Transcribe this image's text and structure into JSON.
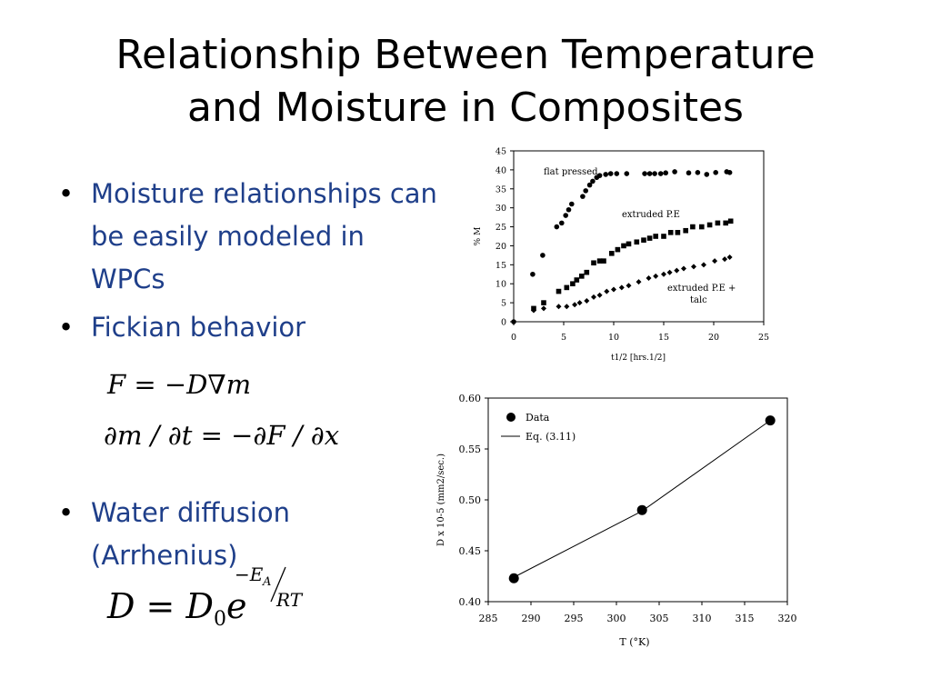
{
  "slide": {
    "title_line1": "Relationship Between Temperature",
    "title_line2": "and Moisture in Composites",
    "bullets": {
      "b1": "Moisture relationships can be easily modeled in WPCs",
      "b2": "Fickian behavior",
      "b3": "Water diffusion (Arrhenius)"
    },
    "equations": {
      "eq1": "F = −D∇m",
      "eq2": "∂m / ∂t = −∂F / ∂x",
      "eq3_base": "D = D",
      "eq3_sub": "0",
      "eq3_e": "e",
      "eq3_num": "−E",
      "eq3_num_sub": "A",
      "eq3_den": "RT"
    }
  },
  "chart_data": [
    {
      "type": "scatter",
      "title": "",
      "xlabel": "t1/2 [hrs.1/2]",
      "ylabel": "% M",
      "xlim": [
        0,
        25
      ],
      "ylim": [
        0,
        45
      ],
      "xticks": [
        0,
        5,
        10,
        15,
        20,
        25
      ],
      "yticks": [
        0,
        5,
        10,
        15,
        20,
        25,
        30,
        35,
        40,
        45
      ],
      "grid": false,
      "series": [
        {
          "name": "flat pressed",
          "marker": "circle",
          "x": [
            0,
            1.9,
            2.9,
            4.3,
            4.8,
            5.2,
            5.5,
            5.8,
            6.9,
            7.2,
            7.6,
            7.9,
            8.3,
            8.6,
            9.2,
            9.7,
            10.3,
            11.3,
            13.1,
            13.6,
            14.1,
            14.7,
            15.2,
            16.1,
            17.5,
            18.4,
            19.3,
            20.2,
            21.3,
            21.6
          ],
          "y": [
            0,
            12.5,
            17.5,
            25,
            26,
            28,
            29.5,
            31,
            33,
            34.5,
            36,
            37,
            38,
            38.5,
            38.8,
            39,
            39,
            39,
            39,
            39,
            39,
            39,
            39.2,
            39.5,
            39.2,
            39.3,
            38.8,
            39.3,
            39.5,
            39.3
          ]
        },
        {
          "name": "extruded P.E",
          "marker": "square",
          "x": [
            2.0,
            3.0,
            4.5,
            5.3,
            5.9,
            6.3,
            6.8,
            7.3,
            8.0,
            8.6,
            9.0,
            9.8,
            10.4,
            11.0,
            11.5,
            12.3,
            13.0,
            13.6,
            14.2,
            15.0,
            15.7,
            16.4,
            17.2,
            17.9,
            18.8,
            19.6,
            20.4,
            21.2,
            21.7
          ],
          "y": [
            3.5,
            5,
            8,
            9,
            10,
            11,
            12,
            13,
            15.5,
            16,
            16,
            18,
            19,
            20,
            20.5,
            21,
            21.5,
            22,
            22.5,
            22.5,
            23.5,
            23.5,
            24,
            25,
            25,
            25.5,
            26,
            26,
            26.5
          ]
        },
        {
          "name": "extruded P.E + talc",
          "marker": "diamond",
          "x": [
            2.0,
            3.0,
            4.5,
            5.3,
            6.1,
            6.6,
            7.3,
            8.0,
            8.6,
            9.3,
            10.0,
            10.8,
            11.5,
            12.5,
            13.5,
            14.2,
            15.0,
            15.6,
            16.3,
            17.0,
            18.0,
            19.0,
            20.1,
            21.1,
            21.6
          ],
          "y": [
            3,
            3.5,
            4,
            4,
            4.5,
            5,
            5.5,
            6.5,
            7,
            8,
            8.5,
            9,
            9.5,
            10.5,
            11.5,
            12,
            12.5,
            13,
            13.5,
            14,
            14.5,
            15,
            16,
            16.5,
            17
          ]
        }
      ],
      "annotations": [
        "flat pressed",
        "extruded P.E",
        "extruded P.E +",
        "talc"
      ]
    },
    {
      "type": "scatter",
      "title": "",
      "xlabel": "T (°K)",
      "ylabel": "D x 10-5 (mm2/sec.)",
      "xlim": [
        285,
        320
      ],
      "ylim": [
        0.4,
        0.6
      ],
      "xticks": [
        285,
        290,
        295,
        300,
        305,
        310,
        315,
        320
      ],
      "yticks": [
        0.4,
        0.45,
        0.5,
        0.55,
        0.6
      ],
      "grid": false,
      "legend": "top-left",
      "series": [
        {
          "name": "Data",
          "marker": "circle",
          "x": [
            288,
            303,
            318
          ],
          "y": [
            0.423,
            0.49,
            0.578
          ]
        },
        {
          "name": "Eq. (3.11)",
          "marker": "line",
          "x": [
            288,
            303,
            318
          ],
          "y": [
            0.424,
            0.489,
            0.578
          ]
        }
      ]
    }
  ]
}
